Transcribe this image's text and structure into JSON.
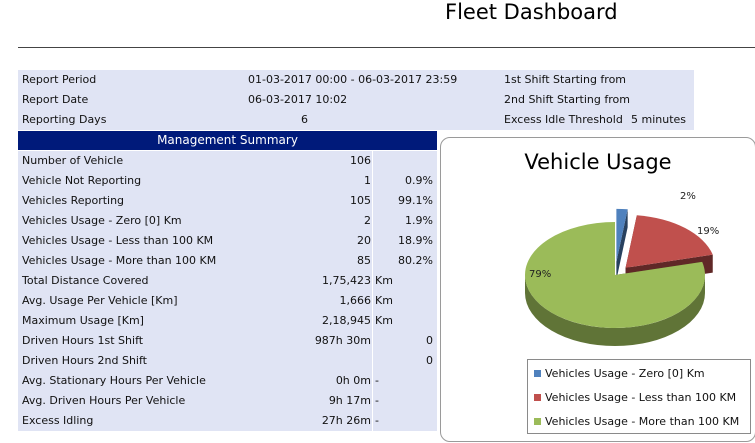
{
  "page_title": "Fleet Dashboard",
  "info": {
    "rows": [
      {
        "label": "Report Period",
        "value": "01-03-2017 00:00 - 06-03-2017 23:59",
        "label2": "1st Shift Starting from",
        "value2": ""
      },
      {
        "label": "Report Date",
        "value": "06-03-2017 10:02",
        "label2": "2nd Shift Starting from",
        "value2": ""
      },
      {
        "label": "Reporting Days",
        "value": "6",
        "label2": "Excess Idle Threshold",
        "value2": "5 minutes"
      }
    ]
  },
  "summary": {
    "header": "Management Summary",
    "rows": [
      {
        "label": "Number of Vehicle",
        "value": "106",
        "extra": ""
      },
      {
        "label": "Vehicle Not Reporting",
        "value": "1",
        "extra": "0.9%"
      },
      {
        "label": "Vehicles Reporting",
        "value": "105",
        "extra": "99.1%"
      },
      {
        "label": "Vehicles Usage - Zero [0] Km",
        "value": "2",
        "extra": "1.9%"
      },
      {
        "label": "Vehicles Usage - Less than 100 KM",
        "value": "20",
        "extra": "18.9%"
      },
      {
        "label": "Vehicles Usage - More than 100 KM",
        "value": "85",
        "extra": "80.2%"
      },
      {
        "label": "Total Distance Covered",
        "value": "1,75,423",
        "unit": "Km"
      },
      {
        "label": "Avg. Usage Per Vehicle [Km]",
        "value": "1,666",
        "unit": "Km"
      },
      {
        "label": "Maximum Usage [Km]",
        "value": "2,18,945",
        "unit": "Km"
      },
      {
        "label": "Driven Hours 1st Shift",
        "value": "987h 30m",
        "extra": "0"
      },
      {
        "label": "Driven Hours 2nd Shift",
        "value": "",
        "extra": "0"
      },
      {
        "label": "Avg. Stationary Hours Per Vehicle",
        "value": "0h 0m",
        "unit": "-"
      },
      {
        "label": "Avg. Driven Hours Per Vehicle",
        "value": "9h 17m",
        "unit": "-"
      },
      {
        "label": "Excess Idling",
        "value": "27h 26m",
        "unit": "-"
      }
    ]
  },
  "chart_data": {
    "type": "pie",
    "title": "Vehicle Usage",
    "categories": [
      "Vehicles Usage - Zero [0] Km",
      "Vehicles Usage - Less than 100 KM",
      "Vehicles Usage - More than 100 KM"
    ],
    "values": [
      2,
      19,
      79
    ],
    "data_labels": [
      "2%",
      "19%",
      "79%"
    ],
    "colors": [
      "#4f81bd",
      "#c0504d",
      "#9bbb59"
    ],
    "legend_position": "bottom-right",
    "style": "3d-exploded"
  }
}
